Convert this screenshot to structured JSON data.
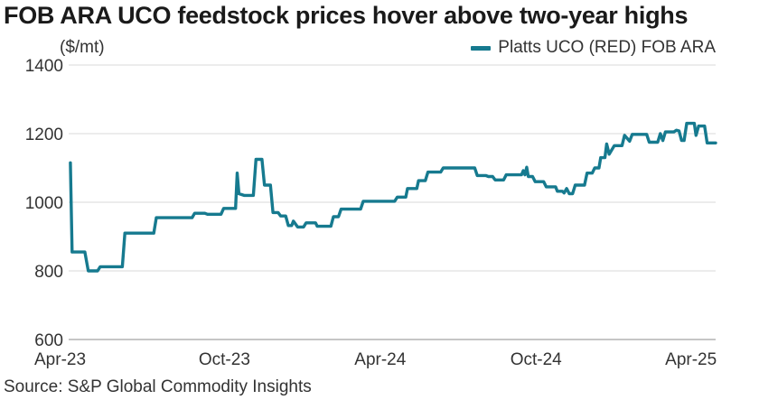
{
  "chart_data": {
    "type": "line",
    "title": "FOB ARA UCO feedstock prices hover above two-year highs",
    "ylabel": "($/mt)",
    "source": "Source: S&P Global Commodity Insights",
    "ylim": [
      600,
      1400
    ],
    "yticks": [
      "1400",
      "1200",
      "1000",
      "800",
      "600"
    ],
    "ytick_values": [
      1400,
      1200,
      1000,
      800,
      600
    ],
    "xlim": [
      "2023-04-01",
      "2025-04-30"
    ],
    "xticks": [
      {
        "label": "Apr-23",
        "date": "2023-04-01"
      },
      {
        "label": "Oct-23",
        "date": "2023-10-01"
      },
      {
        "label": "Apr-24",
        "date": "2024-04-01"
      },
      {
        "label": "Oct-24",
        "date": "2024-10-01"
      },
      {
        "label": "Apr-25",
        "date": "2025-04-01"
      }
    ],
    "grid": true,
    "legend_position": "top-right",
    "series": [
      {
        "name": "Platts UCO (RED) FOB ARA",
        "color": "#167a8f",
        "points": [
          [
            "2023-04-03",
            1115
          ],
          [
            "2023-04-05",
            855
          ],
          [
            "2023-04-20",
            855
          ],
          [
            "2023-04-24",
            800
          ],
          [
            "2023-05-05",
            800
          ],
          [
            "2023-05-08",
            812
          ],
          [
            "2023-06-03",
            812
          ],
          [
            "2023-06-06",
            910
          ],
          [
            "2023-07-10",
            910
          ],
          [
            "2023-07-13",
            955
          ],
          [
            "2023-08-24",
            955
          ],
          [
            "2023-08-27",
            968
          ],
          [
            "2023-09-08",
            968
          ],
          [
            "2023-09-11",
            965
          ],
          [
            "2023-09-27",
            965
          ],
          [
            "2023-09-30",
            982
          ],
          [
            "2023-10-14",
            982
          ],
          [
            "2023-10-16",
            1085
          ],
          [
            "2023-10-18",
            1025
          ],
          [
            "2023-10-24",
            1020
          ],
          [
            "2023-11-04",
            1020
          ],
          [
            "2023-11-07",
            1125
          ],
          [
            "2023-11-14",
            1125
          ],
          [
            "2023-11-17",
            1050
          ],
          [
            "2023-11-24",
            1050
          ],
          [
            "2023-11-27",
            970
          ],
          [
            "2023-12-03",
            970
          ],
          [
            "2023-12-06",
            960
          ],
          [
            "2023-12-12",
            960
          ],
          [
            "2023-12-15",
            932
          ],
          [
            "2023-12-19",
            932
          ],
          [
            "2023-12-21",
            945
          ],
          [
            "2023-12-26",
            928
          ],
          [
            "2024-01-02",
            928
          ],
          [
            "2024-01-05",
            940
          ],
          [
            "2024-01-16",
            940
          ],
          [
            "2024-01-18",
            930
          ],
          [
            "2024-02-03",
            930
          ],
          [
            "2024-02-06",
            958
          ],
          [
            "2024-02-12",
            958
          ],
          [
            "2024-02-15",
            980
          ],
          [
            "2024-03-09",
            980
          ],
          [
            "2024-03-12",
            1003
          ],
          [
            "2024-04-18",
            1003
          ],
          [
            "2024-04-21",
            1015
          ],
          [
            "2024-05-01",
            1015
          ],
          [
            "2024-05-03",
            1040
          ],
          [
            "2024-05-14",
            1040
          ],
          [
            "2024-05-16",
            1063
          ],
          [
            "2024-05-24",
            1063
          ],
          [
            "2024-05-27",
            1088
          ],
          [
            "2024-06-11",
            1088
          ],
          [
            "2024-06-14",
            1100
          ],
          [
            "2024-07-21",
            1100
          ],
          [
            "2024-07-24",
            1078
          ],
          [
            "2024-08-03",
            1078
          ],
          [
            "2024-08-06",
            1075
          ],
          [
            "2024-08-11",
            1075
          ],
          [
            "2024-08-14",
            1065
          ],
          [
            "2024-08-24",
            1065
          ],
          [
            "2024-08-27",
            1080
          ],
          [
            "2024-09-14",
            1080
          ],
          [
            "2024-09-16",
            1092
          ],
          [
            "2024-09-18",
            1080
          ],
          [
            "2024-09-20",
            1102
          ],
          [
            "2024-09-22",
            1075
          ],
          [
            "2024-09-27",
            1075
          ],
          [
            "2024-09-30",
            1060
          ],
          [
            "2024-10-10",
            1060
          ],
          [
            "2024-10-13",
            1045
          ],
          [
            "2024-10-24",
            1045
          ],
          [
            "2024-10-26",
            1032
          ],
          [
            "2024-11-01",
            1032
          ],
          [
            "2024-11-03",
            1027
          ],
          [
            "2024-11-06",
            1040
          ],
          [
            "2024-11-09",
            1025
          ],
          [
            "2024-11-13",
            1025
          ],
          [
            "2024-11-16",
            1050
          ],
          [
            "2024-11-27",
            1050
          ],
          [
            "2024-11-30",
            1085
          ],
          [
            "2024-12-06",
            1085
          ],
          [
            "2024-12-09",
            1100
          ],
          [
            "2024-12-14",
            1100
          ],
          [
            "2024-12-16",
            1130
          ],
          [
            "2024-12-21",
            1130
          ],
          [
            "2024-12-23",
            1170
          ],
          [
            "2024-12-26",
            1140
          ],
          [
            "2025-01-01",
            1165
          ],
          [
            "2025-01-10",
            1165
          ],
          [
            "2025-01-13",
            1195
          ],
          [
            "2025-01-19",
            1178
          ],
          [
            "2025-01-22",
            1198
          ],
          [
            "2025-02-08",
            1198
          ],
          [
            "2025-02-11",
            1175
          ],
          [
            "2025-02-21",
            1175
          ],
          [
            "2025-02-24",
            1200
          ],
          [
            "2025-02-27",
            1180
          ],
          [
            "2025-03-02",
            1205
          ],
          [
            "2025-03-12",
            1205
          ],
          [
            "2025-03-15",
            1210
          ],
          [
            "2025-03-18",
            1208
          ],
          [
            "2025-03-21",
            1180
          ],
          [
            "2025-03-24",
            1180
          ],
          [
            "2025-03-27",
            1230
          ],
          [
            "2025-04-05",
            1230
          ],
          [
            "2025-04-07",
            1195
          ],
          [
            "2025-04-10",
            1222
          ],
          [
            "2025-04-17",
            1222
          ],
          [
            "2025-04-20",
            1173
          ],
          [
            "2025-04-30",
            1173
          ]
        ]
      }
    ]
  }
}
